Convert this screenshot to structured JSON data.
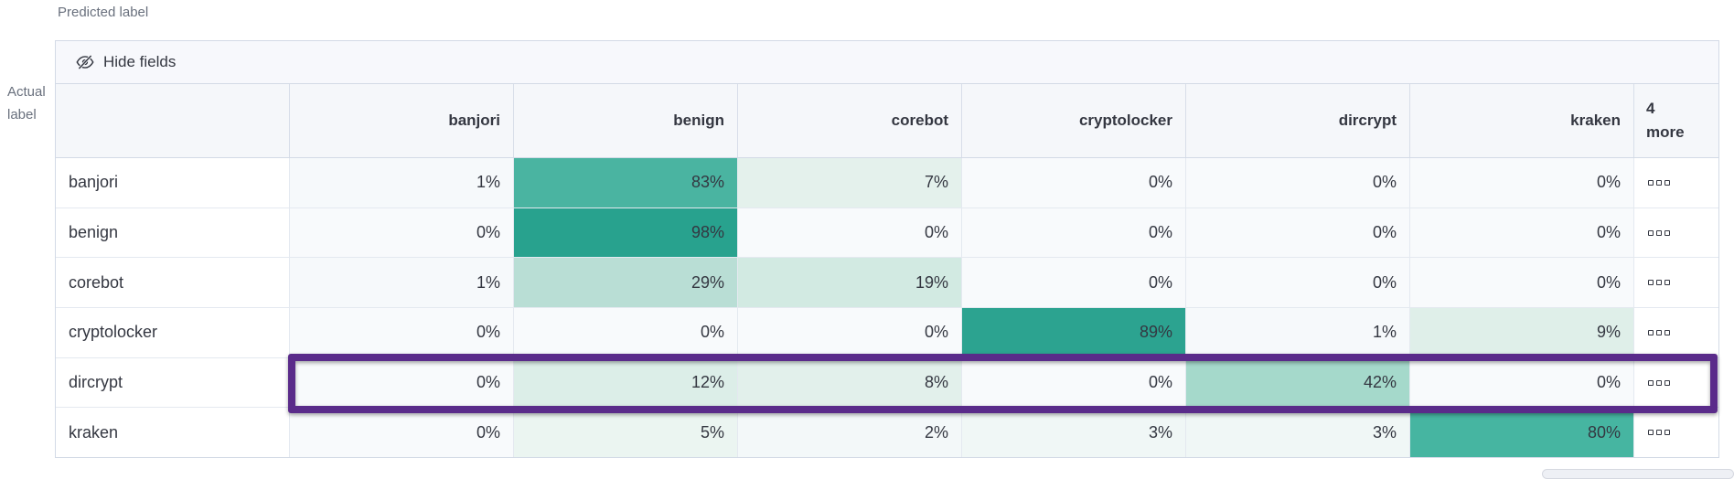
{
  "axis": {
    "predicted": "Predicted label",
    "actual": "Actual label"
  },
  "toolbar": {
    "hide_fields_label": "Hide fields"
  },
  "matrix": {
    "columns": [
      "banjori",
      "benign",
      "corebot",
      "cryptolocker",
      "dircrypt",
      "kraken"
    ],
    "more_column_label": "4 more",
    "rows": [
      {
        "label": "banjori",
        "values": [
          1,
          83,
          7,
          0,
          0,
          0
        ],
        "highlighted": false
      },
      {
        "label": "benign",
        "values": [
          0,
          98,
          0,
          0,
          0,
          0
        ],
        "highlighted": false
      },
      {
        "label": "corebot",
        "values": [
          1,
          29,
          19,
          0,
          0,
          0
        ],
        "highlighted": false
      },
      {
        "label": "cryptolocker",
        "values": [
          0,
          0,
          0,
          89,
          1,
          9
        ],
        "highlighted": false
      },
      {
        "label": "dircrypt",
        "values": [
          0,
          12,
          8,
          0,
          42,
          0
        ],
        "highlighted": true
      },
      {
        "label": "kraken",
        "values": [
          0,
          5,
          2,
          3,
          3,
          80
        ],
        "highlighted": false
      }
    ],
    "value_suffix": "%"
  },
  "chart_data": {
    "type": "heatmap",
    "xlabel": "Predicted label",
    "ylabel": "Actual label",
    "x_categories": [
      "banjori",
      "benign",
      "corebot",
      "cryptolocker",
      "dircrypt",
      "kraken"
    ],
    "y_categories": [
      "banjori",
      "benign",
      "corebot",
      "cryptolocker",
      "dircrypt",
      "kraken"
    ],
    "values_percent": [
      [
        1,
        83,
        7,
        0,
        0,
        0
      ],
      [
        0,
        98,
        0,
        0,
        0,
        0
      ],
      [
        1,
        29,
        19,
        0,
        0,
        0
      ],
      [
        0,
        0,
        0,
        89,
        1,
        9
      ],
      [
        0,
        12,
        8,
        0,
        42,
        0
      ],
      [
        0,
        5,
        2,
        3,
        3,
        80
      ]
    ],
    "hidden_columns_label": "4 more"
  },
  "colors": {
    "highlight": "#5a2b8a",
    "text": "#343741",
    "axis_label": "#69707d",
    "heatmap_stops": [
      [
        0,
        "#f8fafc"
      ],
      [
        1,
        "#f6f9fb"
      ],
      [
        2,
        "#f3f8f9"
      ],
      [
        3,
        "#f0f7f6"
      ],
      [
        5,
        "#ebf5f1"
      ],
      [
        7,
        "#e4f1ec"
      ],
      [
        8,
        "#e2f0eb"
      ],
      [
        9,
        "#dfefe9"
      ],
      [
        12,
        "#dceee8"
      ],
      [
        19,
        "#d2eae2"
      ],
      [
        29,
        "#b9ded5"
      ],
      [
        42,
        "#a5d9cb"
      ],
      [
        80,
        "#46b5a1"
      ],
      [
        83,
        "#4ab4a1"
      ],
      [
        89,
        "#2ca390"
      ],
      [
        98,
        "#28a28e"
      ]
    ]
  }
}
